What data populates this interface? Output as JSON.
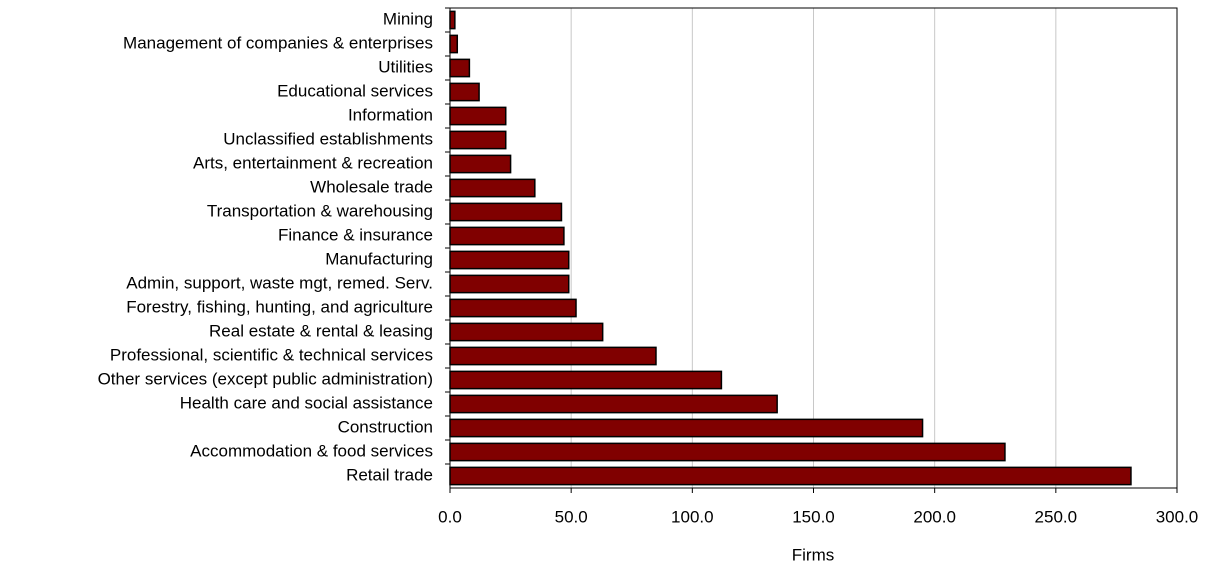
{
  "chart_data": {
    "type": "barh",
    "xlabel": "Firms",
    "categories": [
      "Mining",
      "Management of companies & enterprises",
      "Utilities",
      "Educational services",
      "Information",
      "Unclassified establishments",
      "Arts, entertainment & recreation",
      "Wholesale trade",
      "Transportation & warehousing",
      "Finance & insurance",
      "Manufacturing",
      "Admin, support, waste mgt, remed. Serv.",
      "Forestry, fishing, hunting, and agriculture",
      "Real estate & rental & leasing",
      "Professional, scientific & technical services",
      "Other services (except public administration)",
      "Health care and social assistance",
      "Construction",
      "Accommodation & food services",
      "Retail trade"
    ],
    "values": [
      2,
      3,
      8,
      12,
      23,
      23,
      25,
      35,
      46,
      47,
      49,
      49,
      52,
      63,
      85,
      112,
      135,
      195,
      229,
      281
    ],
    "color": "#800000",
    "xlim": [
      0,
      300
    ],
    "xticks": [
      {
        "value": 0,
        "label": "0.0"
      },
      {
        "value": 50,
        "label": "50.0"
      },
      {
        "value": 100,
        "label": "100.0"
      },
      {
        "value": 150,
        "label": "150.0"
      },
      {
        "value": 200,
        "label": "200.0"
      },
      {
        "value": 250,
        "label": "250.0"
      },
      {
        "value": 300,
        "label": "300.0"
      }
    ],
    "grid": true
  }
}
